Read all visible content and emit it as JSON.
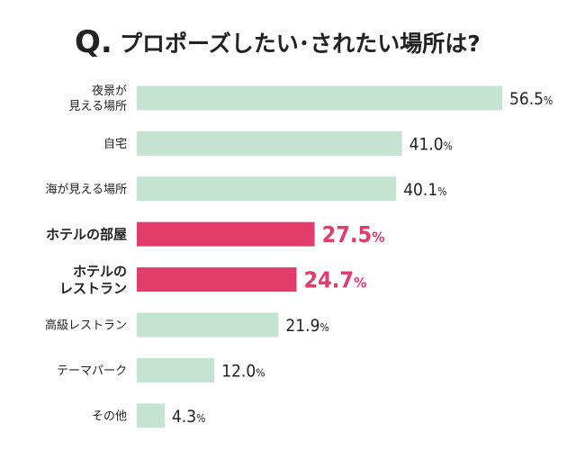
{
  "question": {
    "prefix": "Q.",
    "text": "プロポーズしたい･されたい場所は?"
  },
  "colors": {
    "normal_bar": "#c4e3d1",
    "highlight_bar": "#e23c6b",
    "normal_text": "#222222",
    "highlight_text": "#e23c6b"
  },
  "chart_data": {
    "type": "bar",
    "orientation": "horizontal",
    "title": "プロポーズしたい･されたい場所は?",
    "categories": [
      [
        "夜景が",
        "見える場所"
      ],
      [
        "自宅"
      ],
      [
        "海が見える場所"
      ],
      [
        "ホテルの部屋"
      ],
      [
        "ホテルの",
        "レストラン"
      ],
      [
        "高級レストラン"
      ],
      [
        "テーマパーク"
      ],
      [
        "その他"
      ]
    ],
    "values": [
      56.5,
      41.0,
      40.1,
      27.5,
      24.7,
      21.9,
      12.0,
      4.3
    ],
    "value_labels": [
      "56.5",
      "41.0",
      "40.1",
      "27.5",
      "24.7",
      "21.9",
      "12.0",
      "4.3"
    ],
    "unit": "%",
    "highlighted": [
      false,
      false,
      false,
      true,
      true,
      false,
      false,
      false
    ],
    "xlim": [
      0,
      56.5
    ],
    "xlabel": "",
    "ylabel": "",
    "grid": false
  }
}
